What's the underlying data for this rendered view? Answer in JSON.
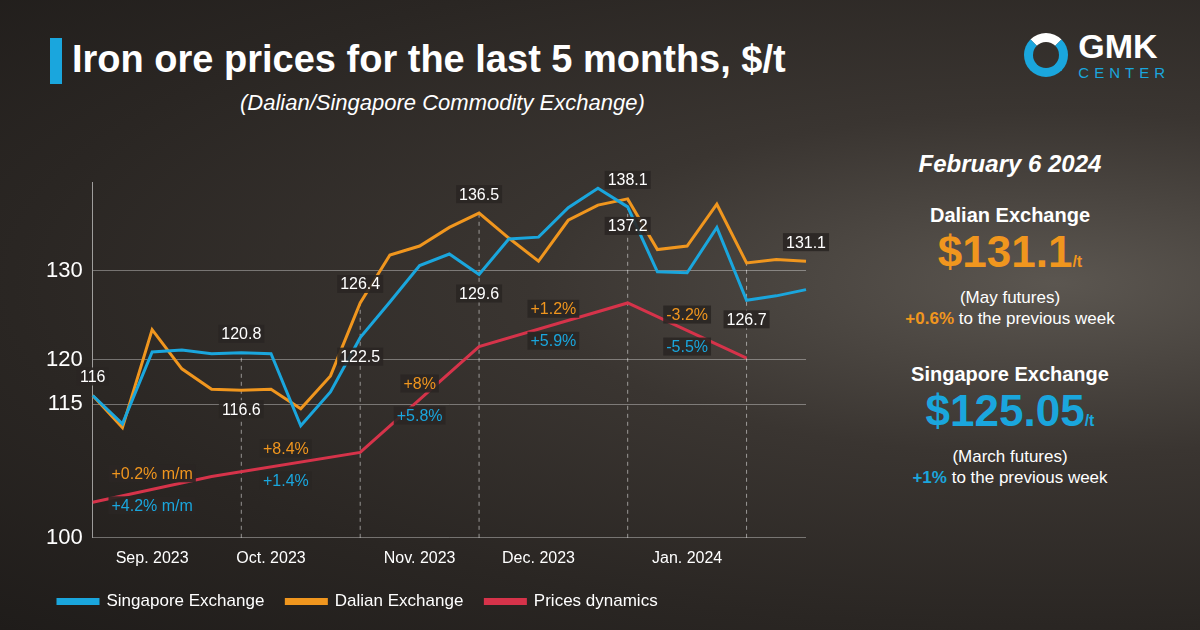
{
  "chart_data": {
    "type": "line",
    "title": "Iron ore prices for the last 5 months, $/t",
    "subtitle": "(Dalian/Singapore Commodity Exchange)",
    "categories": [
      null,
      null,
      "Sep. 2023",
      null,
      null,
      null,
      "Oct. 2023",
      null,
      null,
      null,
      null,
      "Nov. 2023",
      null,
      null,
      null,
      "Dec. 2023",
      null,
      null,
      null,
      null,
      "Jan. 2024",
      null,
      null,
      null,
      null
    ],
    "series": [
      {
        "name": "Singapore Exchange",
        "color": "#1aa6dd",
        "values": [
          116,
          112.8,
          120.9,
          121.1,
          120.7,
          120.8,
          120.7,
          112.6,
          116.4,
          122.5,
          126.5,
          130.6,
          131.9,
          129.6,
          133.6,
          133.8,
          137.1,
          139.3,
          137.2,
          129.9,
          129.8,
          134.9,
          126.7,
          127.2,
          127.9
        ],
        "value_labels": [
          "116",
          null,
          null,
          null,
          null,
          "120.8",
          null,
          null,
          null,
          "122.5",
          null,
          null,
          null,
          "129.6",
          null,
          null,
          null,
          null,
          "137.2",
          null,
          null,
          null,
          "126.7",
          null,
          null
        ]
      },
      {
        "name": "Dalian Exchange",
        "color": "#f0961e",
        "values": [
          116,
          112.4,
          123.4,
          119,
          116.7,
          116.6,
          116.7,
          114.5,
          118.2,
          126.4,
          131.8,
          132.8,
          134.9,
          136.5,
          133.7,
          131.1,
          135.7,
          137.4,
          138.1,
          132.4,
          132.8,
          137.5,
          130.9,
          131.3,
          131.1
        ],
        "value_labels": [
          null,
          null,
          null,
          null,
          null,
          "116.6",
          null,
          null,
          null,
          "126.4",
          null,
          null,
          null,
          "136.5",
          null,
          null,
          null,
          null,
          "138.1",
          null,
          null,
          null,
          null,
          null,
          "131.1"
        ]
      },
      {
        "name": "Prices dynamics",
        "color": "#d6334a",
        "values": [
          104.0,
          null,
          null,
          null,
          106.9,
          null,
          null,
          null,
          null,
          109.6,
          null,
          null,
          null,
          121.5,
          null,
          null,
          null,
          null,
          126.4,
          null,
          null,
          null,
          120.2,
          null,
          null
        ],
        "change_labels": [
          [
            "+4.2% m/m",
            "+0.2% m/m"
          ],
          [
            "+1.4%",
            "+8.4%"
          ],
          [
            "+5.8%",
            "+8%"
          ],
          [
            "+5.9%",
            "+1.2%"
          ],
          [
            "-5.5%",
            "-3.2%"
          ]
        ]
      }
    ],
    "ylim": [
      100,
      140
    ],
    "yticks": [
      100,
      115,
      120,
      130
    ],
    "grid": true,
    "legend": "bottom",
    "data_labels": true
  },
  "side_panel": {
    "date": "February 6 2024",
    "exchanges": [
      {
        "name": "Dalian Exchange",
        "price": "$131.1",
        "unit": "/t",
        "contract": "(May futures)",
        "change": "+0.6%",
        "change_text": "to the previous week",
        "color": "#f0961e"
      },
      {
        "name": "Singapore Exchange",
        "price": "$125.05",
        "unit": "/t",
        "contract": "(March futures)",
        "change": "+1%",
        "change_text": "to the previous week",
        "color": "#1aa6dd"
      }
    ]
  },
  "logo": {
    "name": "GMK",
    "subname": "CENTER"
  }
}
